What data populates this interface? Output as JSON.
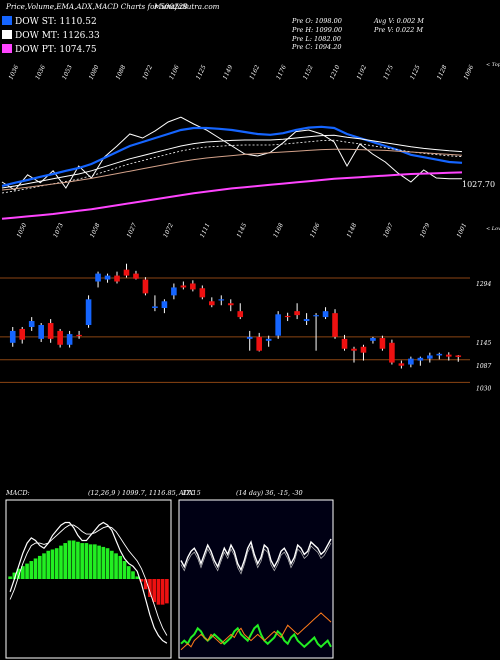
{
  "header": {
    "title": "Price,Volume,EMA,ADX,MACD Charts for 500228",
    "site": "MunafaSutra.com"
  },
  "legend": [
    {
      "label": "DOW ST: 1110.52",
      "color": "#1565ff"
    },
    {
      "label": "DOW MT: 1126.33",
      "color": "#ffffff"
    },
    {
      "label": "DOW PT: 1074.75",
      "color": "#ff44ff"
    }
  ],
  "stats": {
    "pre_o": "Pre  O: 1098.00",
    "pre_h": "Pre  H: 1099.00",
    "pre_l": "Pre  L: 1082.00",
    "pre_c": "Pre  C: 1094.20",
    "avg_v": "Avg V: 0.002  M",
    "pre_v": "Pre  V: 0.022  M"
  },
  "colors": {
    "up": "#1565ff",
    "down": "#ee1111",
    "grid": "#8b4513",
    "ema_short": "#1565ff",
    "ema_pt": "#ff44ff",
    "macd_hist": "#22ee22",
    "macd_neg": "#ee1111",
    "adx_line": "#ffffff",
    "adx_di_plus": "#22ee22",
    "adx_di_minus": "#ff7a1a"
  },
  "chart_data": [
    {
      "type": "line",
      "name": "ema_panel",
      "top_label": "< Tops",
      "bottom_label": "< Lows",
      "last_value_label": "1027.70",
      "tops": [
        "1036",
        "1036",
        "1053",
        "1080",
        "1088",
        "1072",
        "1106",
        "1125",
        "1149",
        "1162",
        "1176",
        "1152",
        "1210",
        "1192",
        "1175",
        "1125",
        "1128",
        "1096"
      ],
      "lows": [
        "1050",
        "1073",
        "1058",
        "1027",
        "1072",
        "1111",
        "1145",
        "1168",
        "1106",
        "1148",
        "1097",
        "1079",
        "1001"
      ],
      "ylim": [
        950,
        1280
      ],
      "series": [
        {
          "name": "Price",
          "color": "#ffffff",
          "values": [
            1050,
            1030,
            1068,
            1048,
            1078,
            1035,
            1090,
            1060,
            1112,
            1140,
            1170,
            1160,
            1178,
            1200,
            1212,
            1195,
            1180,
            1160,
            1140,
            1120,
            1115,
            1124,
            1148,
            1176,
            1180,
            1170,
            1150,
            1090,
            1145,
            1120,
            1100,
            1072,
            1050,
            1080,
            1060,
            1058,
            1058
          ]
        },
        {
          "name": "EMA ST",
          "color": "#1565ff",
          "values": [
            1040,
            1048,
            1055,
            1063,
            1070,
            1078,
            1085,
            1095,
            1110,
            1125,
            1140,
            1150,
            1160,
            1170,
            1180,
            1185,
            1185,
            1183,
            1180,
            1175,
            1170,
            1168,
            1172,
            1180,
            1186,
            1188,
            1185,
            1170,
            1160,
            1150,
            1140,
            1130,
            1118,
            1112,
            1106,
            1100,
            1098
          ]
        },
        {
          "name": "EMA MT",
          "color": "#ffffff",
          "values": [
            1035,
            1040,
            1046,
            1052,
            1058,
            1064,
            1070,
            1078,
            1088,
            1098,
            1108,
            1116,
            1124,
            1132,
            1140,
            1146,
            1150,
            1152,
            1154,
            1155,
            1155,
            1155,
            1157,
            1160,
            1163,
            1166,
            1167,
            1162,
            1158,
            1153,
            1148,
            1143,
            1138,
            1134,
            1131,
            1128,
            1126
          ]
        },
        {
          "name": "EMA LT",
          "color": "#d4a28a",
          "values": [
            1030,
            1033,
            1037,
            1041,
            1045,
            1049,
            1054,
            1059,
            1065,
            1071,
            1077,
            1083,
            1089,
            1095,
            1101,
            1106,
            1110,
            1113,
            1116,
            1119,
            1121,
            1123,
            1125,
            1127,
            1129,
            1131,
            1132,
            1132,
            1131,
            1130,
            1129,
            1127,
            1125,
            1123,
            1121,
            1119,
            1117
          ]
        },
        {
          "name": "EMA PT",
          "color": "#ff44ff",
          "values": [
            958,
            961,
            964,
            967,
            970,
            974,
            978,
            982,
            987,
            992,
            997,
            1002,
            1007,
            1012,
            1017,
            1022,
            1026,
            1030,
            1034,
            1037,
            1040,
            1043,
            1046,
            1049,
            1052,
            1055,
            1058,
            1060,
            1062,
            1064,
            1066,
            1068,
            1070,
            1071,
            1072,
            1073,
            1074
          ]
        }
      ]
    },
    {
      "type": "candlestick",
      "name": "price_panel",
      "price_labels": [
        "1294",
        "1145",
        "1087",
        "1030"
      ],
      "ylim": [
        960,
        1390
      ],
      "candles": [
        {
          "o": 1130,
          "h": 1170,
          "l": 1120,
          "c": 1160
        },
        {
          "o": 1165,
          "h": 1170,
          "l": 1128,
          "c": 1138
        },
        {
          "o": 1170,
          "h": 1195,
          "l": 1160,
          "c": 1185
        },
        {
          "o": 1140,
          "h": 1180,
          "l": 1132,
          "c": 1175
        },
        {
          "o": 1180,
          "h": 1190,
          "l": 1130,
          "c": 1140
        },
        {
          "o": 1160,
          "h": 1165,
          "l": 1118,
          "c": 1125
        },
        {
          "o": 1125,
          "h": 1160,
          "l": 1118,
          "c": 1152
        },
        {
          "o": 1150,
          "h": 1160,
          "l": 1140,
          "c": 1148
        },
        {
          "o": 1175,
          "h": 1250,
          "l": 1168,
          "c": 1240
        },
        {
          "o": 1285,
          "h": 1310,
          "l": 1270,
          "c": 1305
        },
        {
          "o": 1290,
          "h": 1305,
          "l": 1282,
          "c": 1300
        },
        {
          "o": 1300,
          "h": 1310,
          "l": 1280,
          "c": 1285
        },
        {
          "o": 1315,
          "h": 1330,
          "l": 1295,
          "c": 1300
        },
        {
          "o": 1305,
          "h": 1312,
          "l": 1290,
          "c": 1292
        },
        {
          "o": 1290,
          "h": 1296,
          "l": 1250,
          "c": 1255
        },
        {
          "o": 1218,
          "h": 1250,
          "l": 1210,
          "c": 1222
        },
        {
          "o": 1218,
          "h": 1240,
          "l": 1205,
          "c": 1235
        },
        {
          "o": 1250,
          "h": 1280,
          "l": 1240,
          "c": 1270
        },
        {
          "o": 1275,
          "h": 1285,
          "l": 1265,
          "c": 1270
        },
        {
          "o": 1280,
          "h": 1288,
          "l": 1260,
          "c": 1265
        },
        {
          "o": 1268,
          "h": 1275,
          "l": 1240,
          "c": 1245
        },
        {
          "o": 1235,
          "h": 1245,
          "l": 1220,
          "c": 1225
        },
        {
          "o": 1238,
          "h": 1250,
          "l": 1225,
          "c": 1240
        },
        {
          "o": 1230,
          "h": 1240,
          "l": 1210,
          "c": 1225
        },
        {
          "o": 1210,
          "h": 1230,
          "l": 1190,
          "c": 1195
        },
        {
          "o": 1140,
          "h": 1160,
          "l": 1110,
          "c": 1145
        },
        {
          "o": 1145,
          "h": 1155,
          "l": 1108,
          "c": 1110
        },
        {
          "o": 1135,
          "h": 1148,
          "l": 1120,
          "c": 1140
        },
        {
          "o": 1148,
          "h": 1210,
          "l": 1140,
          "c": 1202
        },
        {
          "o": 1198,
          "h": 1206,
          "l": 1185,
          "c": 1195
        },
        {
          "o": 1210,
          "h": 1230,
          "l": 1190,
          "c": 1200
        },
        {
          "o": 1185,
          "h": 1205,
          "l": 1175,
          "c": 1190
        },
        {
          "o": 1198,
          "h": 1205,
          "l": 1110,
          "c": 1200
        },
        {
          "o": 1195,
          "h": 1220,
          "l": 1190,
          "c": 1210
        },
        {
          "o": 1205,
          "h": 1215,
          "l": 1140,
          "c": 1145
        },
        {
          "o": 1140,
          "h": 1150,
          "l": 1110,
          "c": 1115
        },
        {
          "o": 1115,
          "h": 1120,
          "l": 1080,
          "c": 1110
        },
        {
          "o": 1120,
          "h": 1125,
          "l": 1085,
          "c": 1105
        },
        {
          "o": 1135,
          "h": 1145,
          "l": 1128,
          "c": 1142
        },
        {
          "o": 1142,
          "h": 1148,
          "l": 1110,
          "c": 1115
        },
        {
          "o": 1130,
          "h": 1138,
          "l": 1075,
          "c": 1080
        },
        {
          "o": 1078,
          "h": 1085,
          "l": 1065,
          "c": 1072
        },
        {
          "o": 1075,
          "h": 1095,
          "l": 1068,
          "c": 1090
        },
        {
          "o": 1085,
          "h": 1095,
          "l": 1072,
          "c": 1092
        },
        {
          "o": 1090,
          "h": 1105,
          "l": 1080,
          "c": 1098
        },
        {
          "o": 1098,
          "h": 1105,
          "l": 1088,
          "c": 1102
        },
        {
          "o": 1100,
          "h": 1106,
          "l": 1085,
          "c": 1095
        },
        {
          "o": 1098,
          "h": 1099,
          "l": 1082,
          "c": 1094.2
        }
      ]
    },
    {
      "type": "bar",
      "name": "macd_panel",
      "title": "MACD:",
      "params": "(12,26,9 ) 1099.7,  1116.85, -17.15",
      "ylim": [
        -60,
        60
      ],
      "histogram": [
        2,
        5,
        8,
        10,
        12,
        14,
        16,
        18,
        20,
        22,
        23,
        24,
        26,
        28,
        30,
        30,
        29,
        28,
        28,
        27,
        27,
        26,
        25,
        24,
        22,
        20,
        18,
        14,
        10,
        6,
        2,
        -2,
        -8,
        -14,
        -18,
        -20,
        -20,
        -19
      ],
      "macd_line": [
        -10,
        0,
        10,
        20,
        28,
        32,
        30,
        26,
        24,
        28,
        34,
        38,
        42,
        44,
        44,
        40,
        34,
        30,
        30,
        34,
        38,
        42,
        44,
        42,
        38,
        30,
        22,
        16,
        12,
        10,
        6,
        -4,
        -16,
        -28,
        -38,
        -44,
        -48,
        -50
      ],
      "signal_line": [
        -16,
        -8,
        2,
        12,
        20,
        26,
        28,
        28,
        27,
        28,
        31,
        34,
        37,
        40,
        42,
        42,
        40,
        37,
        35,
        35,
        36,
        38,
        40,
        41,
        40,
        37,
        32,
        27,
        22,
        18,
        14,
        8,
        0,
        -10,
        -20,
        -30,
        -38,
        -44
      ]
    },
    {
      "type": "line",
      "name": "adx_panel",
      "title": "ADX",
      "params": "(14 day) 36, -15, -30",
      "ylim": [
        0,
        100
      ],
      "series": [
        {
          "name": "ADX",
          "color": "#ffffff",
          "values": [
            62,
            58,
            64,
            68,
            70,
            66,
            60,
            66,
            72,
            68,
            62,
            58,
            64,
            70,
            66,
            72,
            68,
            60,
            56,
            62,
            70,
            74,
            66,
            60,
            64,
            72,
            70,
            62,
            58,
            62,
            68,
            70,
            66,
            60,
            64,
            72,
            70,
            66,
            68,
            74,
            72,
            70,
            66,
            68,
            72,
            76
          ]
        },
        {
          "name": "+DI",
          "color": "#22ee22",
          "values": [
            8,
            10,
            8,
            12,
            14,
            18,
            16,
            12,
            10,
            12,
            14,
            12,
            10,
            8,
            10,
            12,
            16,
            18,
            14,
            12,
            10,
            14,
            18,
            20,
            14,
            10,
            8,
            10,
            12,
            16,
            14,
            10,
            8,
            12,
            14,
            10,
            8,
            6,
            8,
            10,
            12,
            8,
            6,
            8,
            10,
            6
          ]
        },
        {
          "name": "-DI",
          "color": "#ff7a1a",
          "values": [
            4,
            6,
            8,
            6,
            10,
            12,
            14,
            12,
            10,
            14,
            12,
            10,
            8,
            10,
            12,
            14,
            12,
            16,
            18,
            14,
            12,
            10,
            12,
            14,
            12,
            10,
            12,
            14,
            16,
            14,
            12,
            16,
            20,
            18,
            16,
            14,
            16,
            18,
            20,
            22,
            24,
            26,
            28,
            26,
            24,
            22
          ]
        }
      ]
    }
  ]
}
